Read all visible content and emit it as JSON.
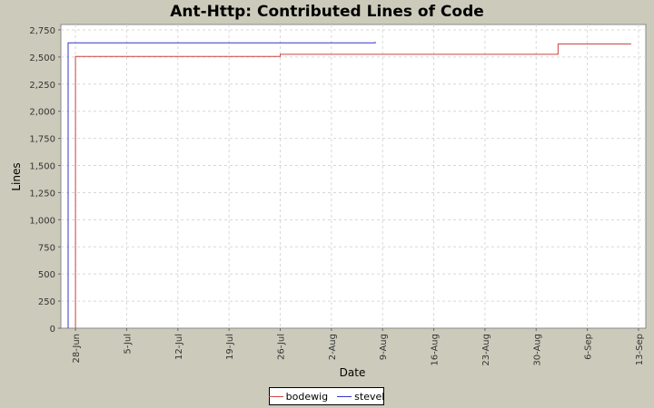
{
  "chart_data": {
    "type": "line",
    "title": "Ant-Http: Contributed Lines of Code",
    "xlabel": "Date",
    "ylabel": "Lines",
    "xlim": [
      "2003-06-26",
      "2003-09-14"
    ],
    "ylim": [
      0,
      2800
    ],
    "x_ticks": [
      "28-Jun",
      "5-Jul",
      "12-Jul",
      "19-Jul",
      "26-Jul",
      "2-Aug",
      "9-Aug",
      "16-Aug",
      "23-Aug",
      "30-Aug",
      "6-Sep",
      "13-Sep"
    ],
    "y_ticks": [
      "0",
      "250",
      "500",
      "750",
      "1,000",
      "1,250",
      "1,500",
      "1,750",
      "2,000",
      "2,250",
      "2,500",
      "2,750"
    ],
    "grid": true,
    "legend_position": "bottom",
    "series": [
      {
        "name": "bodewig",
        "color": "#cc4444",
        "points": [
          {
            "x": "2003-06-28",
            "y": 0
          },
          {
            "x": "2003-06-28",
            "y": 2505
          },
          {
            "x": "2003-07-26",
            "y": 2505
          },
          {
            "x": "2003-07-26",
            "y": 2525
          },
          {
            "x": "2003-09-02",
            "y": 2525
          },
          {
            "x": "2003-09-02",
            "y": 2620
          },
          {
            "x": "2003-09-12",
            "y": 2620
          }
        ]
      },
      {
        "name": "stevel",
        "color": "#3333cc",
        "points": [
          {
            "x": "2003-06-27",
            "y": 0
          },
          {
            "x": "2003-06-27",
            "y": 2630
          },
          {
            "x": "2003-08-08",
            "y": 2630
          },
          {
            "x": "2003-08-08",
            "y": 2640
          }
        ]
      }
    ]
  }
}
